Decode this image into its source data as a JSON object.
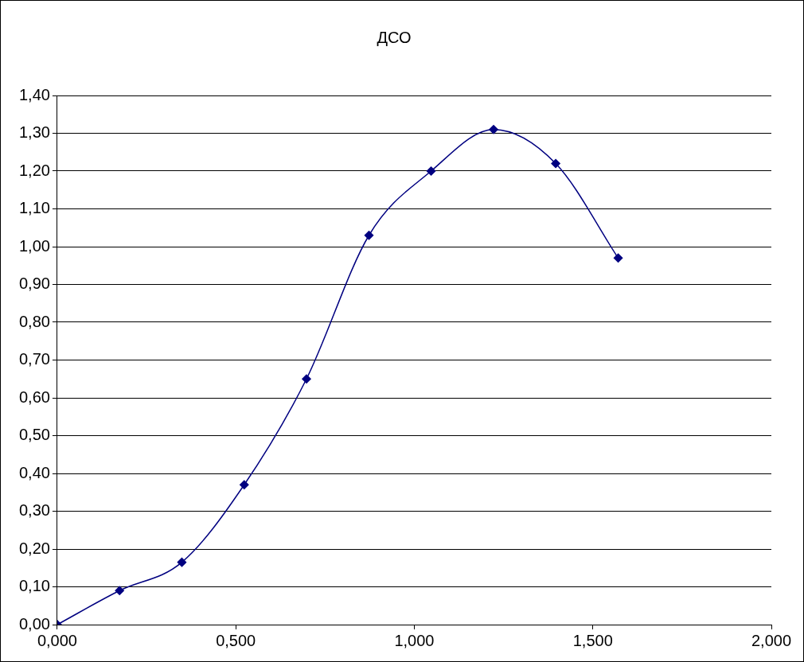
{
  "chart_data": {
    "type": "line",
    "title": "ДСО",
    "x": [
      0,
      0.1745,
      0.349,
      0.5236,
      0.698,
      0.873,
      1.047,
      1.222,
      1.396,
      1.571
    ],
    "series": [
      {
        "color": "#000080",
        "values": [
          0,
          0.09,
          0.165,
          0.37,
          0.65,
          1.03,
          1.2,
          1.31,
          1.22,
          0.97
        ]
      }
    ],
    "xlim": [
      0,
      2
    ],
    "xticks": [
      {
        "value": 0,
        "label": "0,000"
      },
      {
        "value": 0.5,
        "label": "0,500"
      },
      {
        "value": 1,
        "label": "1,000"
      },
      {
        "value": 1.5,
        "label": "1,500"
      },
      {
        "value": 2,
        "label": "2,000"
      }
    ],
    "ylim": [
      0,
      1.4
    ],
    "yticks": [
      {
        "value": 0,
        "label": "0,00"
      },
      {
        "value": 0.1,
        "label": "0,10"
      },
      {
        "value": 0.2,
        "label": "0,20"
      },
      {
        "value": 0.3,
        "label": "0,30"
      },
      {
        "value": 0.4,
        "label": "0,40"
      },
      {
        "value": 0.5,
        "label": "0,50"
      },
      {
        "value": 0.6,
        "label": "0,60"
      },
      {
        "value": 0.7,
        "label": "0,70"
      },
      {
        "value": 0.8,
        "label": "0,80"
      },
      {
        "value": 0.9,
        "label": "0,90"
      },
      {
        "value": 1,
        "label": "1,00"
      },
      {
        "value": 1.1,
        "label": "1,10"
      },
      {
        "value": 1.2,
        "label": "1,20"
      },
      {
        "value": 1.3,
        "label": "1,30"
      },
      {
        "value": 1.4,
        "label": "1,40"
      }
    ],
    "grid": "y",
    "marker": "diamond",
    "line_style": "solid",
    "legend": false
  }
}
